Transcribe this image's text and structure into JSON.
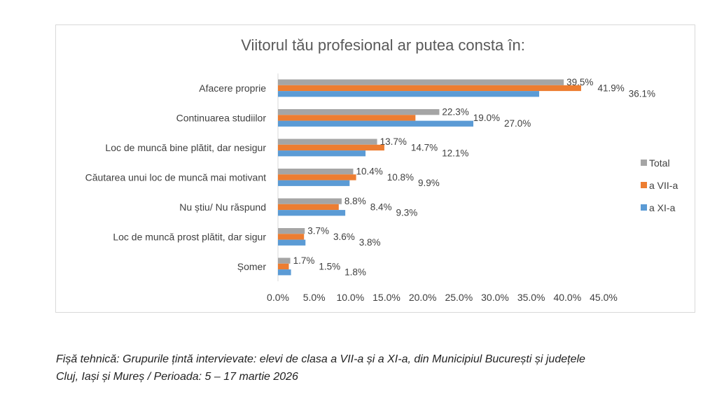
{
  "chart_data": {
    "type": "bar",
    "orientation": "horizontal",
    "title": "Viitorul tău profesional ar putea consta în:",
    "categories": [
      "Afacere proprie",
      "Continuarea studiilor",
      "Loc de muncă bine plătit, dar nesigur",
      "Căutarea unui loc de muncă mai motivant",
      "Nu știu/ Nu răspund",
      "Loc de muncă prost plătit, dar sigur",
      "Șomer"
    ],
    "series": [
      {
        "name": "Total",
        "color": "#a5a5a5",
        "values": [
          39.5,
          22.3,
          13.7,
          10.4,
          8.8,
          3.7,
          1.7
        ]
      },
      {
        "name": "a VII-a",
        "color": "#ed7d31",
        "values": [
          41.9,
          19.0,
          14.7,
          10.8,
          8.4,
          3.6,
          1.5
        ]
      },
      {
        "name": "a  XI-a",
        "color": "#5b9bd5",
        "values": [
          36.1,
          27.0,
          12.1,
          9.9,
          9.3,
          3.8,
          1.8
        ]
      }
    ],
    "xlim": [
      0,
      45
    ],
    "xticks": [
      "0.0%",
      "5.0%",
      "10.0%",
      "15.0%",
      "20.0%",
      "25.0%",
      "30.0%",
      "35.0%",
      "40.0%",
      "45.0%"
    ],
    "legend": "right",
    "grid": false
  },
  "footer": {
    "line1": "Fișă tehnică: Grupurile țintă intervievate: elevi de clasa a VII-a și a XI-a, din Municipiul București și județele",
    "line2": "Cluj, Iași și Mureș / Perioada: 5 – 17 martie 2026"
  }
}
